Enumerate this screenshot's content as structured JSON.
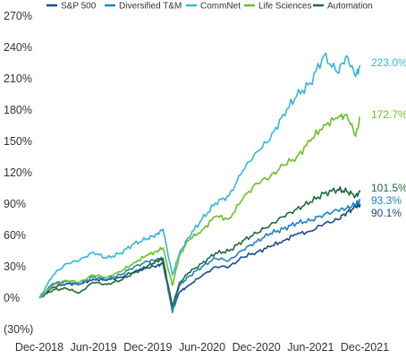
{
  "chart_data": {
    "type": "line",
    "title": "",
    "xlabel": "",
    "ylabel": "",
    "x_tick_labels": [
      "Dec-2018",
      "Jun-2019",
      "Dec-2019",
      "Jun-2020",
      "Dec-2020",
      "Jun-2021",
      "Dec-2021"
    ],
    "y_tick_labels": [
      "270%",
      "240%",
      "210%",
      "180%",
      "150%",
      "120%",
      "90%",
      "60%",
      "30%",
      "0%",
      "(30%)"
    ],
    "xlim": [
      "2018-12-31",
      "2021-12-31"
    ],
    "ylim": [
      -30,
      270
    ],
    "legend_position": "top-center",
    "grid": false,
    "x_dates": [
      "2018-12-31",
      "2019-02-15",
      "2019-04-01",
      "2019-05-15",
      "2019-06-30",
      "2019-08-15",
      "2019-09-30",
      "2019-11-15",
      "2019-12-31",
      "2020-01-31",
      "2020-02-20",
      "2020-03-23",
      "2020-04-15",
      "2020-05-15",
      "2020-06-30",
      "2020-08-15",
      "2020-09-30",
      "2020-11-15",
      "2020-12-31",
      "2021-02-15",
      "2021-03-31",
      "2021-05-15",
      "2021-06-30",
      "2021-08-15",
      "2021-09-30",
      "2021-10-31",
      "2021-11-30",
      "2021-12-15"
    ],
    "series": [
      {
        "name": "S&P 500",
        "color": "#1a4c8a",
        "values": [
          0,
          10,
          14,
          13,
          18,
          17,
          20,
          25,
          29,
          31,
          33,
          -12,
          5,
          12,
          21,
          30,
          30,
          39,
          44,
          49,
          55,
          61,
          64,
          71,
          75,
          82,
          87,
          90.1
        ],
        "end_label": "90.1%"
      },
      {
        "name": "Diversified T&M",
        "color": "#1f82c8",
        "values": [
          0,
          14,
          16,
          13,
          20,
          18,
          22,
          30,
          35,
          37,
          38,
          -14,
          12,
          20,
          30,
          38,
          36,
          46,
          54,
          62,
          66,
          72,
          74,
          80,
          84,
          86,
          90,
          93.3
        ],
        "end_label": "93.3%"
      },
      {
        "name": "CommNet",
        "color": "#33b8d6",
        "values": [
          0,
          22,
          33,
          36,
          44,
          38,
          43,
          52,
          57,
          61,
          66,
          22,
          42,
          58,
          75,
          91,
          98,
          122,
          140,
          152,
          176,
          193,
          206,
          232,
          216,
          232,
          212,
          223.0
        ],
        "end_label": "223.0%"
      },
      {
        "name": "Life Sciences",
        "color": "#6cc024",
        "values": [
          0,
          12,
          17,
          15,
          22,
          20,
          25,
          34,
          41,
          45,
          48,
          12,
          40,
          55,
          65,
          78,
          76,
          95,
          110,
          116,
          127,
          135,
          150,
          166,
          172,
          176,
          155,
          172.7
        ],
        "end_label": "172.7%"
      },
      {
        "name": "Automation",
        "color": "#1f6b3a",
        "values": [
          0,
          8,
          9,
          5,
          15,
          13,
          17,
          24,
          31,
          35,
          38,
          -8,
          14,
          24,
          33,
          43,
          45,
          55,
          62,
          70,
          78,
          85,
          92,
          100,
          104,
          102,
          98,
          101.5
        ],
        "end_label": "101.5%"
      }
    ]
  }
}
